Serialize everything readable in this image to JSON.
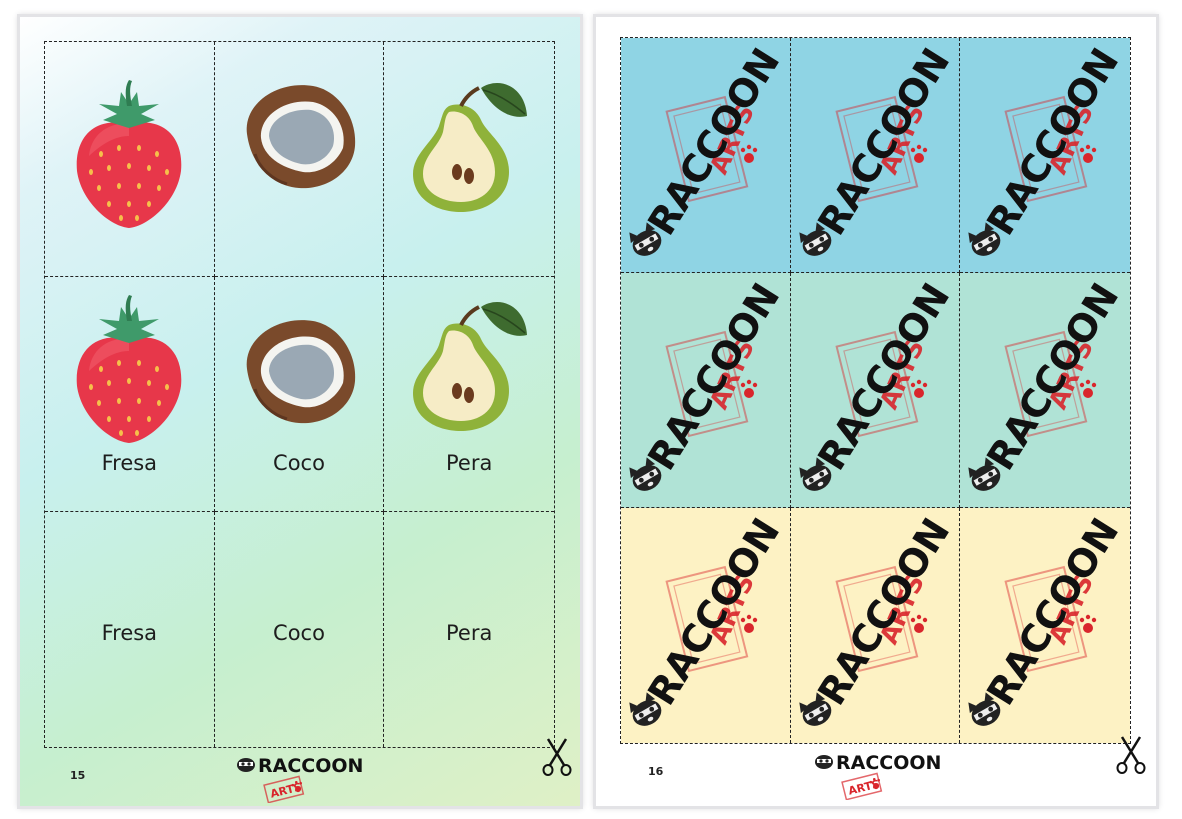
{
  "page_left": {
    "page_number": "15",
    "picture_cards": [
      {
        "fruit": "strawberry"
      },
      {
        "fruit": "coconut"
      },
      {
        "fruit": "pear"
      }
    ],
    "picture_label_cards": [
      {
        "fruit": "strawberry",
        "label": "Fresa"
      },
      {
        "fruit": "coconut",
        "label": "Coco"
      },
      {
        "fruit": "pear",
        "label": "Pera"
      }
    ],
    "word_cards": [
      {
        "label": "Fresa"
      },
      {
        "label": "Coco"
      },
      {
        "label": "Pera"
      }
    ],
    "footer": {
      "brand": "RACCOON",
      "stamp": "ARTS"
    }
  },
  "page_right": {
    "page_number": "16",
    "card_backs": {
      "brand": "RACCOON",
      "stamp": "ARTS",
      "row_colors": [
        "#8fd4e4",
        "#b0e3d6",
        "#fdf2c4"
      ]
    },
    "footer": {
      "brand": "RACCOON",
      "stamp": "ARTS"
    }
  },
  "icons": [
    "strawberry-icon",
    "coconut-icon",
    "pear-icon",
    "raccoon-face-icon",
    "paw-print-icon",
    "scissors-icon"
  ]
}
